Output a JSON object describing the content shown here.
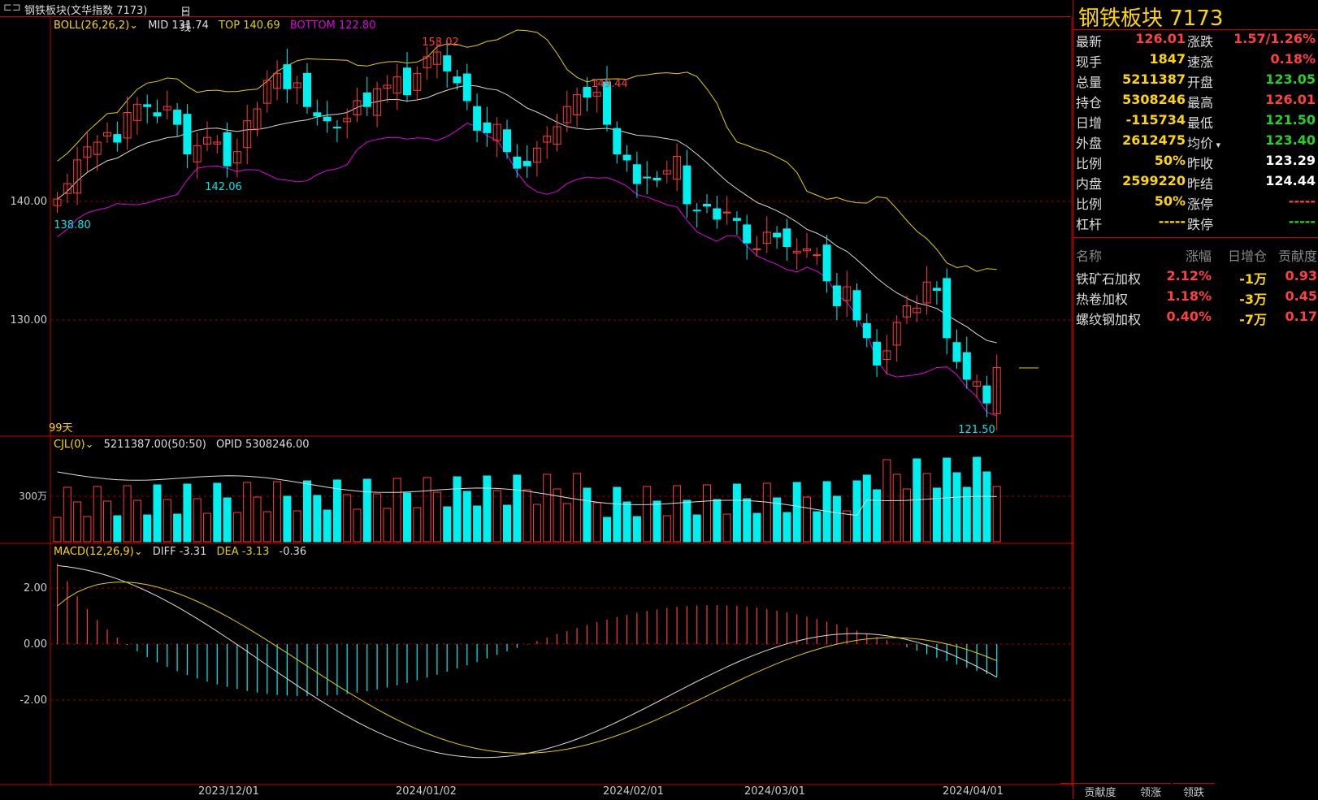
{
  "topbar": {
    "title": "钢铁板块(文华指数 7173)",
    "period": "日线"
  },
  "boll": {
    "label": "BOLL(26,26,2)",
    "mid": "MID 131.74",
    "top": "TOP 140.69",
    "bottom": "BOTTOM 122.80"
  },
  "cjl": {
    "label": "CJL(0)",
    "vol": "5211387.00(50:50)",
    "opid": "OPID 5308246.00"
  },
  "macd": {
    "label": "MACD(12,26,9)",
    "diff": "DIFF -3.31",
    "dea": "DEA -3.13",
    "val": "-0.36"
  },
  "main_yaxis": [
    "140.00",
    "130.00"
  ],
  "vol_yaxis": [
    "300万"
  ],
  "macd_yaxis": [
    "2.00",
    "0.00",
    "-2.00"
  ],
  "days_label": "99天",
  "annotations": {
    "a1": "153.02",
    "a2": "149.44",
    "a3": "142.06",
    "a4": "138.80",
    "a5": "121.50"
  },
  "xaxis": [
    "2023/12/01",
    "2024/01/02",
    "2024/02/01",
    "2024/03/01",
    "2024/04/01"
  ],
  "colors": {
    "up": "#ff3b3b",
    "down": "#00f0f0",
    "boll_top": "#e0d000",
    "boll_mid": "#d8d8d8",
    "boll_bot": "#e000e0",
    "grid": "#a00000"
  },
  "side": {
    "title": "钢铁板块  7173",
    "left": [
      {
        "label": "最新",
        "value": "126.01",
        "color": "red"
      },
      {
        "label": "现手",
        "value": "1847",
        "color": "yellow"
      },
      {
        "label": "总量",
        "value": "5211387",
        "color": "yellow"
      },
      {
        "label": "持仓",
        "value": "5308246",
        "color": "yellow"
      },
      {
        "label": "日增",
        "value": "-115734",
        "color": "yellow"
      },
      {
        "label": "外盘",
        "value": "2612475",
        "color": "yellow"
      },
      {
        "label": "比例",
        "value": "50%",
        "color": "yellow"
      },
      {
        "label": "内盘",
        "value": "2599220",
        "color": "yellow"
      },
      {
        "label": "比例",
        "value": "50%",
        "color": "yellow"
      },
      {
        "label": "杠杆",
        "value": "-----",
        "color": "yellow"
      }
    ],
    "right": [
      {
        "label": "涨跌",
        "value": "1.57/1.26%",
        "color": "red"
      },
      {
        "label": "速涨",
        "value": "0.18%",
        "color": "red"
      },
      {
        "label": "开盘",
        "value": "123.05",
        "color": "green"
      },
      {
        "label": "最高",
        "value": "126.01",
        "color": "red"
      },
      {
        "label": "最低",
        "value": "121.50",
        "color": "green"
      },
      {
        "label": "均价",
        "value": "123.40",
        "color": "green"
      },
      {
        "label": "昨收",
        "value": "123.29",
        "color": "white"
      },
      {
        "label": "昨结",
        "value": "124.44",
        "color": "white"
      },
      {
        "label": "涨停",
        "value": "-----",
        "color": "red"
      },
      {
        "label": "跌停",
        "value": "-----",
        "color": "green"
      }
    ],
    "table_headers": [
      "名称",
      "涨幅",
      "日增仓",
      "贡献度"
    ],
    "table_rows": [
      {
        "name": "铁矿石加权",
        "chg": "2.12%",
        "inc": "-1万",
        "contrib": "0.93"
      },
      {
        "name": "热卷加权",
        "chg": "1.18%",
        "inc": "-3万",
        "contrib": "0.45"
      },
      {
        "name": "螺纹钢加权",
        "chg": "0.40%",
        "inc": "-7万",
        "contrib": "0.17"
      }
    ],
    "tabs": [
      "贡献度",
      "领涨",
      "领跌"
    ]
  }
}
